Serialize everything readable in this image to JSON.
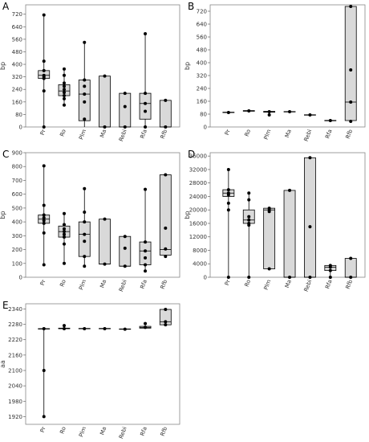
{
  "chart_data": [
    {
      "type": "box",
      "title": "A",
      "ylabel": "bp",
      "color": "#d9d9d9",
      "categories": [
        "Pr",
        "Ro",
        "Plm",
        "Ma",
        "Rebi",
        "Rfa",
        "Rfb"
      ],
      "ylim": [
        0,
        780
      ],
      "yticks": [
        0,
        80,
        160,
        240,
        320,
        400,
        480,
        560,
        640,
        720
      ],
      "boxes": [
        {
          "min": 0,
          "q1": 310,
          "median": 330,
          "q3": 360,
          "max": 715,
          "points": [
            0,
            230,
            310,
            320,
            330,
            360,
            420,
            715
          ]
        },
        {
          "min": 140,
          "q1": 200,
          "median": 230,
          "q3": 270,
          "max": 370,
          "points": [
            140,
            180,
            200,
            220,
            240,
            260,
            280,
            330,
            370
          ]
        },
        {
          "min": 0,
          "q1": 40,
          "median": 210,
          "q3": 300,
          "max": 540,
          "points": [
            50,
            160,
            210,
            260,
            300,
            540
          ]
        },
        {
          "min": 0,
          "q1": 0,
          "median": 0,
          "q3": 325,
          "max": 325,
          "points": [
            0,
            325
          ]
        },
        {
          "min": 0,
          "q1": 0,
          "median": 0,
          "q3": 215,
          "max": 215,
          "points": [
            0,
            130,
            215
          ]
        },
        {
          "min": 0,
          "q1": 50,
          "median": 150,
          "q3": 215,
          "max": 595,
          "points": [
            0,
            100,
            150,
            215,
            595
          ]
        },
        {
          "min": 0,
          "q1": 0,
          "median": 0,
          "q3": 170,
          "max": 170,
          "points": [
            0,
            170
          ]
        }
      ]
    },
    {
      "type": "box",
      "title": "B",
      "ylabel": "bp",
      "color": "#d9d9d9",
      "categories": [
        "Pr",
        "Ro",
        "Plm",
        "Ma",
        "Rebi",
        "Rfa",
        "Rfb"
      ],
      "ylim": [
        0,
        760
      ],
      "yticks": [
        0,
        80,
        160,
        240,
        320,
        400,
        480,
        560,
        640,
        720
      ],
      "boxes": [
        {
          "min": 88,
          "q1": 90,
          "median": 90,
          "q3": 92,
          "max": 94,
          "points": [
            90
          ]
        },
        {
          "min": 95,
          "q1": 98,
          "median": 100,
          "q3": 102,
          "max": 105,
          "points": [
            100
          ]
        },
        {
          "min": 75,
          "q1": 92,
          "median": 95,
          "q3": 97,
          "max": 98,
          "points": [
            75,
            95
          ]
        },
        {
          "min": 93,
          "q1": 94,
          "median": 95,
          "q3": 96,
          "max": 97,
          "points": [
            95
          ]
        },
        {
          "min": 73,
          "q1": 74,
          "median": 75,
          "q3": 76,
          "max": 77,
          "points": [
            75
          ]
        },
        {
          "min": 38,
          "q1": 39,
          "median": 40,
          "q3": 41,
          "max": 42,
          "points": [
            40
          ]
        },
        {
          "min": 35,
          "q1": 40,
          "median": 155,
          "q3": 750,
          "max": 750,
          "points": [
            35,
            155,
            355,
            750
          ]
        }
      ]
    },
    {
      "type": "box",
      "title": "C",
      "ylabel": "bp",
      "color": "#d9d9d9",
      "categories": [
        "Pr",
        "Ro",
        "Plm",
        "Ma",
        "Rebi",
        "Rfa",
        "Rfb"
      ],
      "ylim": [
        0,
        900
      ],
      "yticks": [
        0,
        100,
        200,
        300,
        400,
        500,
        600,
        700,
        800,
        900
      ],
      "boxes": [
        {
          "min": 90,
          "q1": 390,
          "median": 420,
          "q3": 450,
          "max": 805,
          "points": [
            90,
            320,
            390,
            410,
            430,
            450,
            520,
            805
          ]
        },
        {
          "min": 100,
          "q1": 290,
          "median": 330,
          "q3": 370,
          "max": 460,
          "points": [
            100,
            240,
            290,
            310,
            330,
            350,
            380,
            460
          ]
        },
        {
          "min": 80,
          "q1": 150,
          "median": 310,
          "q3": 400,
          "max": 640,
          "points": [
            80,
            150,
            260,
            310,
            400,
            470,
            640
          ]
        },
        {
          "min": 95,
          "q1": 95,
          "median": 95,
          "q3": 420,
          "max": 420,
          "points": [
            95,
            420
          ]
        },
        {
          "min": 80,
          "q1": 80,
          "median": 80,
          "q3": 295,
          "max": 295,
          "points": [
            80,
            210,
            295
          ]
        },
        {
          "min": 45,
          "q1": 90,
          "median": 190,
          "q3": 255,
          "max": 635,
          "points": [
            45,
            90,
            140,
            190,
            255,
            635
          ]
        },
        {
          "min": 150,
          "q1": 160,
          "median": 200,
          "q3": 740,
          "max": 740,
          "points": [
            150,
            205,
            355,
            740
          ]
        }
      ]
    },
    {
      "type": "box",
      "title": "D",
      "ylabel": "bp",
      "color": "#d9d9d9",
      "categories": [
        "Pr",
        "Ro",
        "Plm",
        "Ma",
        "Rebi",
        "Rfa",
        "Rfb"
      ],
      "ylim": [
        0,
        37000
      ],
      "yticks": [
        0,
        4000,
        8000,
        12000,
        16000,
        20000,
        24000,
        28000,
        32000,
        36000
      ],
      "boxes": [
        {
          "min": 0,
          "q1": 24000,
          "median": 25000,
          "q3": 26000,
          "max": 32000,
          "points": [
            0,
            20000,
            22000,
            24500,
            25000,
            26000,
            32000
          ]
        },
        {
          "min": 0,
          "q1": 16000,
          "median": 17000,
          "q3": 20000,
          "max": 25000,
          "points": [
            0,
            15500,
            16000,
            17000,
            18000,
            23000,
            25000
          ]
        },
        {
          "min": 2500,
          "q1": 2500,
          "median": 20000,
          "q3": 20500,
          "max": 20500,
          "points": [
            2500,
            19500,
            20000,
            20500
          ]
        },
        {
          "min": 0,
          "q1": 0,
          "median": 0,
          "q3": 25800,
          "max": 25800,
          "points": [
            0,
            25800
          ]
        },
        {
          "min": 0,
          "q1": 0,
          "median": 0,
          "q3": 35500,
          "max": 35500,
          "points": [
            0,
            15000,
            35500
          ]
        },
        {
          "min": 0,
          "q1": 2000,
          "median": 3000,
          "q3": 3500,
          "max": 3500,
          "points": [
            0,
            2000,
            3000,
            3500
          ]
        },
        {
          "min": 0,
          "q1": 0,
          "median": 0,
          "q3": 5600,
          "max": 5600,
          "points": [
            0,
            5600
          ]
        }
      ]
    },
    {
      "type": "box",
      "title": "E",
      "ylabel": "aa",
      "color": "#d9d9d9",
      "categories": [
        "Pr",
        "Ro",
        "Plm",
        "Ma",
        "Rebi",
        "Rfa",
        "Rfb"
      ],
      "ylim": [
        1890,
        2360
      ],
      "yticks": [
        1920,
        1980,
        2040,
        2100,
        2160,
        2220,
        2280,
        2340
      ],
      "boxes": [
        {
          "min": 1920,
          "q1": 2263,
          "median": 2263,
          "q3": 2263,
          "max": 2263,
          "points": [
            1920,
            2100,
            2263
          ]
        },
        {
          "min": 2263,
          "q1": 2263,
          "median": 2263,
          "q3": 2265,
          "max": 2275,
          "points": [
            2263,
            2275
          ]
        },
        {
          "min": 2262,
          "q1": 2263,
          "median": 2263,
          "q3": 2264,
          "max": 2264,
          "points": [
            2263
          ]
        },
        {
          "min": 2262,
          "q1": 2263,
          "median": 2263,
          "q3": 2264,
          "max": 2264,
          "points": [
            2263
          ]
        },
        {
          "min": 2260,
          "q1": 2261,
          "median": 2261,
          "q3": 2262,
          "max": 2262,
          "points": [
            2261
          ]
        },
        {
          "min": 2263,
          "q1": 2265,
          "median": 2268,
          "q3": 2272,
          "max": 2285,
          "points": [
            2268,
            2283
          ]
        },
        {
          "min": 2275,
          "q1": 2278,
          "median": 2290,
          "q3": 2338,
          "max": 2338,
          "points": [
            2278,
            2290,
            2338
          ]
        }
      ]
    }
  ]
}
